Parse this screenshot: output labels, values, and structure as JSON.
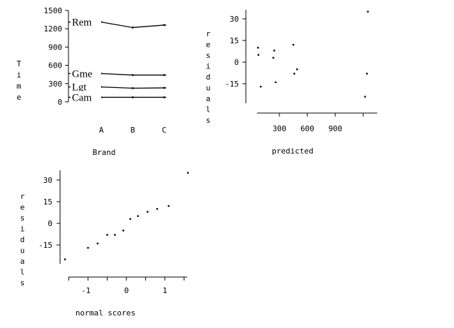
{
  "chart_data": [
    {
      "type": "line",
      "xlabel": "Brand",
      "ylabel": "Time",
      "categories": [
        "A",
        "B",
        "C"
      ],
      "yticks": [
        1500,
        1200,
        900,
        600,
        300,
        0
      ],
      "ylim": [
        0,
        1500
      ],
      "series": [
        {
          "name": "Rem",
          "values": [
            1310,
            1220,
            1260
          ]
        },
        {
          "name": "Gme",
          "values": [
            465,
            440,
            440
          ]
        },
        {
          "name": "Lgt",
          "values": [
            245,
            225,
            230
          ]
        },
        {
          "name": "Cam",
          "values": [
            75,
            75,
            75
          ]
        }
      ]
    },
    {
      "type": "scatter",
      "xlabel": "predicted",
      "ylabel": "residuals",
      "xticks": [
        300,
        600,
        900
      ],
      "yticks": [
        30,
        15,
        0,
        -15
      ],
      "points": [
        {
          "x": 70,
          "y": 10
        },
        {
          "x": 75,
          "y": 5
        },
        {
          "x": 100,
          "y": -17
        },
        {
          "x": 235,
          "y": 3
        },
        {
          "x": 245,
          "y": 8
        },
        {
          "x": 260,
          "y": -14
        },
        {
          "x": 450,
          "y": 12
        },
        {
          "x": 460,
          "y": -8
        },
        {
          "x": 490,
          "y": -5
        },
        {
          "x": 1220,
          "y": -24
        },
        {
          "x": 1240,
          "y": -8
        },
        {
          "x": 1250,
          "y": 35
        }
      ]
    },
    {
      "type": "scatter",
      "xlabel": "normal scores",
      "ylabel": "residuals",
      "xticks": [
        -1,
        0,
        1
      ],
      "yticks": [
        30,
        15,
        0,
        -15
      ],
      "points": [
        {
          "x": -1.6,
          "y": -25
        },
        {
          "x": -1.0,
          "y": -17
        },
        {
          "x": -0.75,
          "y": -14
        },
        {
          "x": -0.5,
          "y": -8
        },
        {
          "x": -0.3,
          "y": -8
        },
        {
          "x": -0.08,
          "y": -5
        },
        {
          "x": 0.1,
          "y": 3
        },
        {
          "x": 0.3,
          "y": 5
        },
        {
          "x": 0.55,
          "y": 8
        },
        {
          "x": 0.8,
          "y": 10
        },
        {
          "x": 1.1,
          "y": 12
        },
        {
          "x": 1.6,
          "y": 35
        }
      ]
    }
  ]
}
